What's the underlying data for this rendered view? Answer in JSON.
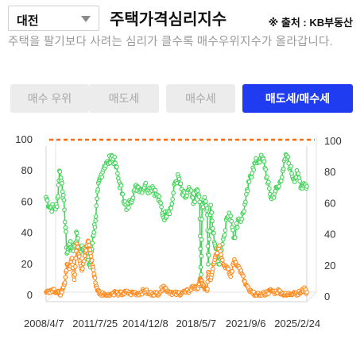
{
  "filter": {
    "region": "대전"
  },
  "header": {
    "title": "주택가격심리지수",
    "source": "※ 출처 : KB부동산",
    "description": "주택을 팔기보다 사려는 심리가 클수록 매수우위지수가 올라갑니다."
  },
  "tabs": [
    {
      "label": "매수 우위",
      "active": false
    },
    {
      "label": "매도세",
      "active": false
    },
    {
      "label": "매수세",
      "active": false
    },
    {
      "label": "매도세/매수세",
      "active": true
    }
  ],
  "colors": {
    "accent": "#1f3cf0",
    "buy_series": "#44d45a",
    "sell_series": "#ff8a1f",
    "reference_line": "#ff6a10"
  },
  "chart_data": {
    "type": "line",
    "x_start": "2008-04-07",
    "x_end": "2025-10-13",
    "x_tick_labels": [
      "2008/4/7",
      "2011/7/25",
      "2014/12/8",
      "2018/5/7",
      "2021/9/6",
      "2025/2/24"
    ],
    "x_tick_dates": [
      "2008-04-07",
      "2011-07-25",
      "2014-12-08",
      "2018-05-07",
      "2021-09-06",
      "2025-02-24"
    ],
    "ylim": [
      0,
      100
    ],
    "y_ticks": [
      0,
      20,
      40,
      60,
      80,
      100
    ],
    "reference_line": {
      "y": 100,
      "style": "dashed"
    },
    "series": [
      {
        "key": "buy",
        "color": "#44d45a",
        "points": [
          [
            "2008-04-07",
            63
          ],
          [
            "2008-07-01",
            57
          ],
          [
            "2008-10-01",
            56
          ],
          [
            "2009-01-01",
            57
          ],
          [
            "2009-03-01",
            80
          ],
          [
            "2009-05-01",
            72
          ],
          [
            "2009-07-01",
            55
          ],
          [
            "2009-09-01",
            27
          ],
          [
            "2009-11-01",
            33
          ],
          [
            "2010-01-01",
            30
          ],
          [
            "2010-03-01",
            31
          ],
          [
            "2010-05-01",
            40
          ],
          [
            "2010-07-01",
            26
          ],
          [
            "2010-09-01",
            32
          ],
          [
            "2010-12-01",
            30
          ],
          [
            "2011-02-01",
            23
          ],
          [
            "2011-04-01",
            18
          ],
          [
            "2011-06-01",
            38
          ],
          [
            "2011-08-01",
            48
          ],
          [
            "2011-10-01",
            68
          ],
          [
            "2011-12-01",
            76
          ],
          [
            "2012-03-01",
            83
          ],
          [
            "2012-06-01",
            85
          ],
          [
            "2012-09-01",
            90
          ],
          [
            "2012-12-01",
            85
          ],
          [
            "2013-03-01",
            73
          ],
          [
            "2013-06-01",
            65
          ],
          [
            "2013-09-01",
            55
          ],
          [
            "2013-12-01",
            60
          ],
          [
            "2014-03-01",
            67
          ],
          [
            "2014-06-01",
            70
          ],
          [
            "2014-09-01",
            68
          ],
          [
            "2014-12-01",
            71
          ],
          [
            "2015-03-01",
            68
          ],
          [
            "2015-06-01",
            70
          ],
          [
            "2015-09-01",
            65
          ],
          [
            "2015-12-01",
            60
          ],
          [
            "2016-03-01",
            50
          ],
          [
            "2016-06-01",
            54
          ],
          [
            "2016-09-01",
            56
          ],
          [
            "2016-12-01",
            72
          ],
          [
            "2017-03-01",
            76
          ],
          [
            "2017-06-01",
            65
          ],
          [
            "2017-09-01",
            63
          ],
          [
            "2017-12-01",
            68
          ],
          [
            "2018-03-01",
            59
          ],
          [
            "2018-06-01",
            68
          ],
          [
            "2018-08-01",
            60
          ],
          [
            "2018-09-01",
            6
          ],
          [
            "2018-10-01",
            56
          ],
          [
            "2018-12-01",
            63
          ],
          [
            "2019-02-01",
            56
          ],
          [
            "2019-03-01",
            20
          ],
          [
            "2019-05-01",
            58
          ],
          [
            "2019-07-01",
            40
          ],
          [
            "2019-09-01",
            30
          ],
          [
            "2019-12-01",
            20
          ],
          [
            "2020-03-01",
            36
          ],
          [
            "2020-06-01",
            50
          ],
          [
            "2020-09-01",
            51
          ],
          [
            "2020-12-01",
            37
          ],
          [
            "2021-03-01",
            49
          ],
          [
            "2021-06-01",
            49
          ],
          [
            "2021-09-01",
            60
          ],
          [
            "2021-12-01",
            73
          ],
          [
            "2022-03-01",
            82
          ],
          [
            "2022-06-01",
            86
          ],
          [
            "2022-09-01",
            88
          ],
          [
            "2022-12-01",
            86
          ],
          [
            "2023-03-01",
            72
          ],
          [
            "2023-06-01",
            62
          ],
          [
            "2023-09-01",
            67
          ],
          [
            "2023-12-01",
            70
          ],
          [
            "2024-03-01",
            80
          ],
          [
            "2024-06-01",
            90
          ],
          [
            "2024-09-01",
            82
          ],
          [
            "2024-12-01",
            75
          ],
          [
            "2025-03-01",
            78
          ],
          [
            "2025-06-01",
            70
          ],
          [
            "2025-08-01",
            72
          ],
          [
            "2025-10-13",
            70
          ]
        ]
      },
      {
        "key": "sell",
        "color": "#ff8a1f",
        "points": [
          [
            "2008-04-07",
            2
          ],
          [
            "2008-07-01",
            3
          ],
          [
            "2008-10-01",
            4
          ],
          [
            "2009-01-01",
            2
          ],
          [
            "2009-03-01",
            1
          ],
          [
            "2009-05-01",
            2
          ],
          [
            "2009-07-01",
            7
          ],
          [
            "2009-09-01",
            20
          ],
          [
            "2009-11-01",
            17
          ],
          [
            "2010-01-01",
            24
          ],
          [
            "2010-03-01",
            10
          ],
          [
            "2010-05-01",
            33
          ],
          [
            "2010-07-01",
            25
          ],
          [
            "2010-09-01",
            16
          ],
          [
            "2010-12-01",
            28
          ],
          [
            "2011-02-01",
            35
          ],
          [
            "2011-04-01",
            27
          ],
          [
            "2011-06-01",
            18
          ],
          [
            "2011-08-01",
            8
          ],
          [
            "2011-10-01",
            3
          ],
          [
            "2011-12-01",
            1
          ],
          [
            "2012-03-01",
            1
          ],
          [
            "2012-06-01",
            0
          ],
          [
            "2012-09-01",
            1
          ],
          [
            "2012-12-01",
            2
          ],
          [
            "2013-03-01",
            1
          ],
          [
            "2013-06-01",
            1
          ],
          [
            "2013-09-01",
            2
          ],
          [
            "2013-12-01",
            1
          ],
          [
            "2014-03-01",
            2
          ],
          [
            "2014-06-01",
            1
          ],
          [
            "2014-09-01",
            2
          ],
          [
            "2014-12-01",
            3
          ],
          [
            "2015-03-01",
            1
          ],
          [
            "2015-06-01",
            1
          ],
          [
            "2015-09-01",
            1
          ],
          [
            "2015-12-01",
            2
          ],
          [
            "2016-03-01",
            6
          ],
          [
            "2016-06-01",
            3
          ],
          [
            "2016-09-01",
            2
          ],
          [
            "2016-12-01",
            1
          ],
          [
            "2017-03-01",
            1
          ],
          [
            "2017-06-01",
            2
          ],
          [
            "2017-09-01",
            2
          ],
          [
            "2017-12-01",
            3
          ],
          [
            "2018-03-01",
            6
          ],
          [
            "2018-06-01",
            4
          ],
          [
            "2018-08-01",
            9
          ],
          [
            "2018-09-01",
            10
          ],
          [
            "2018-10-01",
            8
          ],
          [
            "2018-12-01",
            4
          ],
          [
            "2019-02-01",
            3
          ],
          [
            "2019-03-01",
            15
          ],
          [
            "2019-05-01",
            10
          ],
          [
            "2019-07-01",
            20
          ],
          [
            "2019-09-01",
            26
          ],
          [
            "2019-12-01",
            32
          ],
          [
            "2020-03-01",
            20
          ],
          [
            "2020-06-01",
            18
          ],
          [
            "2020-09-01",
            12
          ],
          [
            "2020-12-01",
            23
          ],
          [
            "2021-03-01",
            19
          ],
          [
            "2021-06-01",
            14
          ],
          [
            "2021-09-01",
            7
          ],
          [
            "2021-12-01",
            3
          ],
          [
            "2022-03-01",
            1
          ],
          [
            "2022-06-01",
            0
          ],
          [
            "2022-09-01",
            0
          ],
          [
            "2022-12-01",
            1
          ],
          [
            "2023-03-01",
            2
          ],
          [
            "2023-06-01",
            3
          ],
          [
            "2023-09-01",
            2
          ],
          [
            "2023-12-01",
            3
          ],
          [
            "2024-03-01",
            1
          ],
          [
            "2024-06-01",
            0
          ],
          [
            "2024-09-01",
            1
          ],
          [
            "2024-12-01",
            2
          ],
          [
            "2025-03-01",
            1
          ],
          [
            "2025-06-01",
            2
          ],
          [
            "2025-08-01",
            4
          ],
          [
            "2025-10-13",
            2
          ]
        ]
      }
    ]
  }
}
